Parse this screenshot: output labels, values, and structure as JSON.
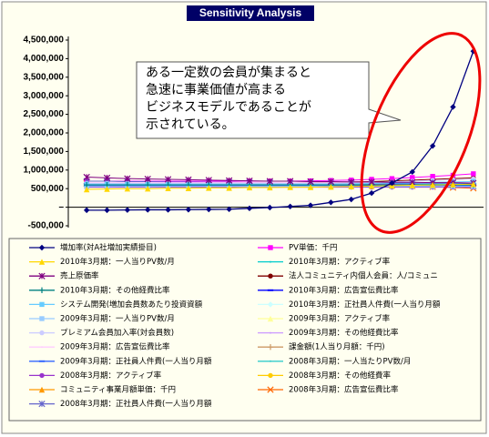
{
  "chart_data": {
    "type": "line",
    "title": "Sensitivity Analysis",
    "annotations": [
      "ある一定数の会員が集まると",
      "急速に事業価値が高まる",
      "ビジネスモデルであることが",
      "示されている。"
    ],
    "categories": [
      null,
      null,
      null,
      null,
      null,
      null,
      null,
      null,
      null,
      null,
      null,
      null,
      null,
      null,
      null,
      null,
      null,
      null,
      null,
      null
    ],
    "ylim": [
      -500000,
      4500000
    ],
    "yticks": [
      {
        "value": 4500000,
        "label": "4,500,000"
      },
      {
        "value": 4000000,
        "label": "4,000,000"
      },
      {
        "value": 3500000,
        "label": "3,500,000"
      },
      {
        "value": 3000000,
        "label": "3,000,000"
      },
      {
        "value": 2500000,
        "label": "2,500,000"
      },
      {
        "value": 2000000,
        "label": "2,000,000"
      },
      {
        "value": 1500000,
        "label": "1,500,000"
      },
      {
        "value": 1000000,
        "label": "1,000,000"
      },
      {
        "value": 500000,
        "label": "500,000"
      },
      {
        "value": 0,
        "label": "–"
      },
      {
        "value": -500000,
        "label": "-500,000"
      }
    ],
    "grid": false,
    "series": [
      {
        "name": "増加率(対A社増加実績掛目)",
        "color": "#000080",
        "marker": "diamond",
        "values": [
          -80000,
          -80000,
          -75000,
          -70000,
          -70000,
          -65000,
          -60000,
          -55000,
          -30000,
          -10000,
          20000,
          50000,
          130000,
          210000,
          380000,
          650000,
          950000,
          1650000,
          2700000,
          4200000
        ]
      },
      {
        "name": "2010年3月期：一人当りPV数/月",
        "color": "#ffd700",
        "marker": "triangle",
        "values": [
          480000,
          490000,
          500000,
          500000,
          510000,
          510000,
          520000,
          520000,
          530000,
          530000,
          540000,
          540000,
          550000,
          560000,
          570000,
          580000,
          590000,
          600000,
          610000,
          620000
        ]
      },
      {
        "name": "売上原価率",
        "color": "#800080",
        "marker": "star",
        "values": [
          810000,
          790000,
          770000,
          760000,
          750000,
          740000,
          730000,
          720000,
          710000,
          700000,
          700000,
          690000,
          690000,
          680000,
          680000,
          670000,
          670000,
          660000,
          660000,
          650000
        ]
      },
      {
        "name": "2010年3月期：その他経費比率",
        "color": "#008080",
        "marker": "plus",
        "values": [
          600000,
          600000,
          600000,
          600000,
          600000,
          600000,
          600000,
          600000,
          600000,
          600000,
          600000,
          600000,
          600000,
          600000,
          600000,
          600000,
          600000,
          600000,
          600000,
          600000
        ]
      },
      {
        "name": "システム開発(増加会員数あたり投資資額",
        "color": "#66ccff",
        "marker": "square",
        "values": [
          620000,
          620000,
          620000,
          620000,
          620000,
          620000,
          620000,
          620000,
          620000,
          620000,
          620000,
          620000,
          620000,
          630000,
          640000,
          650000,
          660000,
          670000,
          680000,
          690000
        ]
      },
      {
        "name": "2009年3月期：一人当りPV数/月",
        "color": "#99ccff",
        "marker": "square",
        "values": [
          560000,
          560000,
          560000,
          560000,
          560000,
          560000,
          560000,
          560000,
          560000,
          560000,
          560000,
          560000,
          560000,
          560000,
          560000,
          560000,
          560000,
          560000,
          560000,
          560000
        ]
      },
      {
        "name": "プレミアム会員加入率(対会員数)",
        "color": "#ccccff",
        "marker": "circle",
        "values": [
          640000,
          640000,
          640000,
          640000,
          640000,
          640000,
          640000,
          640000,
          640000,
          640000,
          640000,
          640000,
          640000,
          650000,
          660000,
          680000,
          700000,
          720000,
          740000,
          760000
        ]
      },
      {
        "name": "2009年3月期：広告宣伝費比率",
        "color": "#ffccff",
        "marker": "none",
        "values": [
          660000,
          660000,
          660000,
          660000,
          660000,
          660000,
          660000,
          660000,
          660000,
          660000,
          660000,
          660000,
          660000,
          660000,
          660000,
          660000,
          660000,
          660000,
          660000,
          660000
        ]
      },
      {
        "name": "2009年3月期：正社員人件費(一人当り月額",
        "color": "#3366ff",
        "marker": "dash",
        "values": [
          580000,
          580000,
          580000,
          580000,
          580000,
          580000,
          580000,
          580000,
          580000,
          580000,
          580000,
          580000,
          580000,
          580000,
          580000,
          580000,
          580000,
          580000,
          580000,
          580000
        ]
      },
      {
        "name": "2008年3月期：アクティブ率",
        "color": "#9933cc",
        "marker": "circle",
        "values": [
          540000,
          540000,
          540000,
          540000,
          540000,
          540000,
          540000,
          540000,
          540000,
          540000,
          540000,
          540000,
          540000,
          540000,
          540000,
          540000,
          540000,
          540000,
          540000,
          540000
        ]
      },
      {
        "name": "コミュニティ事業月額単価：千円",
        "color": "#ff9900",
        "marker": "triangle",
        "values": [
          600000,
          600000,
          600000,
          600000,
          600000,
          600000,
          600000,
          600000,
          600000,
          600000,
          600000,
          600000,
          600000,
          600000,
          600000,
          600000,
          600000,
          600000,
          600000,
          600000
        ]
      },
      {
        "name": "2008年3月期：正社員人件費(一人当り月額",
        "color": "#6666cc",
        "marker": "star",
        "values": [
          700000,
          700000,
          690000,
          690000,
          680000,
          680000,
          670000,
          670000,
          660000,
          660000,
          650000,
          650000,
          640000,
          640000,
          630000,
          620000,
          610000,
          600000,
          580000,
          560000
        ]
      },
      {
        "name": "PV単価：千円",
        "color": "#ff00ff",
        "marker": "square",
        "values": [
          700000,
          700000,
          700000,
          700000,
          700000,
          700000,
          700000,
          700000,
          700000,
          700000,
          700000,
          710000,
          720000,
          730000,
          750000,
          770000,
          800000,
          830000,
          860000,
          900000
        ]
      },
      {
        "name": "2010年3月期：アクティブ率",
        "color": "#00cccc",
        "marker": "none",
        "values": [
          620000,
          620000,
          620000,
          620000,
          620000,
          620000,
          620000,
          620000,
          620000,
          620000,
          620000,
          620000,
          620000,
          620000,
          620000,
          620000,
          620000,
          620000,
          620000,
          620000
        ]
      },
      {
        "name": "法人コミュニティ内個人会員：人/コミュニ",
        "color": "#800000",
        "marker": "circle",
        "values": [
          650000,
          650000,
          650000,
          650000,
          650000,
          650000,
          650000,
          650000,
          650000,
          650000,
          650000,
          660000,
          670000,
          680000,
          690000,
          710000,
          730000,
          750000,
          770000,
          790000
        ]
      },
      {
        "name": "2010年3月期：広告宣伝費比率",
        "color": "#0000ff",
        "marker": "dash",
        "values": [
          630000,
          630000,
          630000,
          630000,
          630000,
          630000,
          630000,
          630000,
          630000,
          630000,
          630000,
          630000,
          630000,
          630000,
          630000,
          630000,
          630000,
          630000,
          630000,
          630000
        ]
      },
      {
        "name": "2010年3月期：正社員人件費(一人当り月額",
        "color": "#ccffff",
        "marker": "diamond",
        "values": [
          590000,
          590000,
          590000,
          590000,
          590000,
          590000,
          590000,
          590000,
          590000,
          590000,
          590000,
          590000,
          590000,
          590000,
          590000,
          590000,
          590000,
          590000,
          590000,
          590000
        ]
      },
      {
        "name": "2009年3月期：アクティブ率",
        "color": "#ffff99",
        "marker": "triangle",
        "values": [
          570000,
          570000,
          570000,
          570000,
          570000,
          570000,
          570000,
          570000,
          570000,
          570000,
          570000,
          570000,
          570000,
          570000,
          570000,
          570000,
          570000,
          570000,
          570000,
          570000
        ]
      },
      {
        "name": "2009年3月期：その他経費比率",
        "color": "#cc99ff",
        "marker": "none",
        "values": [
          610000,
          610000,
          610000,
          610000,
          610000,
          610000,
          610000,
          610000,
          610000,
          610000,
          610000,
          610000,
          610000,
          610000,
          610000,
          610000,
          610000,
          610000,
          610000,
          610000
        ]
      },
      {
        "name": "課金額(1人当り月額：千円)",
        "color": "#cc9966",
        "marker": "plus",
        "values": [
          620000,
          620000,
          620000,
          620000,
          620000,
          620000,
          620000,
          620000,
          620000,
          620000,
          620000,
          620000,
          620000,
          620000,
          620000,
          620000,
          620000,
          620000,
          620000,
          620000
        ]
      },
      {
        "name": "2008年3月期：一人当たりPV数/月",
        "color": "#33cccc",
        "marker": "none",
        "values": [
          550000,
          550000,
          550000,
          550000,
          550000,
          550000,
          550000,
          550000,
          550000,
          550000,
          550000,
          550000,
          550000,
          550000,
          550000,
          550000,
          550000,
          550000,
          550000,
          550000
        ]
      },
      {
        "name": "2008年3月期：その他経費率",
        "color": "#ffcc00",
        "marker": "circle",
        "values": [
          560000,
          560000,
          560000,
          560000,
          560000,
          560000,
          560000,
          560000,
          560000,
          560000,
          560000,
          560000,
          560000,
          560000,
          560000,
          560000,
          560000,
          560000,
          560000,
          560000
        ]
      },
      {
        "name": "2008年3月期：広告宣伝費比率",
        "color": "#ff6600",
        "marker": "x",
        "values": [
          640000,
          640000,
          640000,
          640000,
          640000,
          640000,
          640000,
          640000,
          640000,
          640000,
          640000,
          630000,
          620000,
          610000,
          600000,
          590000,
          570000,
          550000,
          530000,
          510000
        ]
      }
    ]
  }
}
